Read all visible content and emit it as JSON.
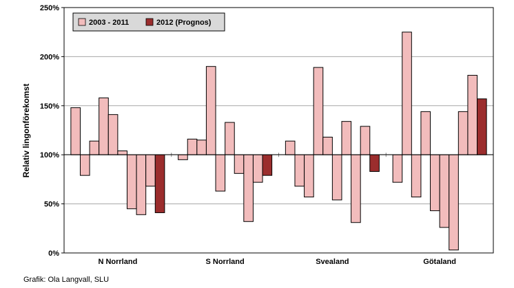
{
  "chart_data": {
    "type": "bar",
    "ylabel": "Relativ lingonförekomst",
    "y_baseline": 100,
    "ylim": [
      0,
      250
    ],
    "yticks": [
      0,
      50,
      100,
      150,
      200,
      250
    ],
    "ytick_labels": [
      "0%",
      "50%",
      "100%",
      "150%",
      "200%",
      "250%"
    ],
    "grid": true,
    "legend_position": "top-left",
    "series": [
      {
        "name": "2003 - 2011",
        "color": "#f2bcbc"
      },
      {
        "name": "2012 (Prognos)",
        "color": "#9b2d2d"
      }
    ],
    "groups": [
      {
        "label": "N Norrland",
        "historic": [
          148,
          79,
          114,
          158,
          141,
          104,
          45,
          39,
          68
        ],
        "forecast": 41
      },
      {
        "label": "S Norrland",
        "historic": [
          95,
          116,
          115,
          190,
          63,
          133,
          81,
          32,
          72
        ],
        "forecast": 79
      },
      {
        "label": "Svealand",
        "historic": [
          114,
          68,
          57,
          189,
          118,
          54,
          134,
          31,
          129
        ],
        "forecast": 83
      },
      {
        "label": "Götaland",
        "historic": [
          72,
          225,
          57,
          144,
          43,
          26,
          3,
          144,
          181
        ],
        "forecast": 157
      }
    ]
  },
  "credit": "Grafik: Ola Langvall, SLU"
}
